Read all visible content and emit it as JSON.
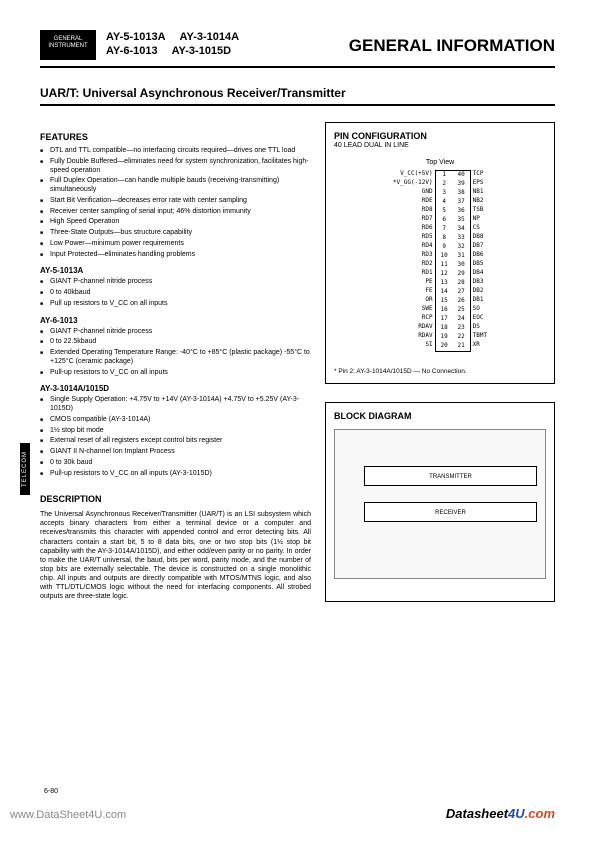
{
  "header": {
    "logo": "GENERAL INSTRUMENT",
    "parts": [
      [
        "AY-5-1013A",
        "AY-3-1014A"
      ],
      [
        "AY-6-1013",
        "AY-3-1015D"
      ]
    ],
    "title": "GENERAL INFORMATION"
  },
  "subtitle": "UAR/T: Universal Asynchronous Receiver/Transmitter",
  "features_title": "FEATURES",
  "features_main": [
    "DTL and TTL compatible—no interfacing circuits required—drives one TTL load",
    "Fully Double Buffered—eliminates need for system synchronization, facilitates high-speed operation",
    "Full Duplex Operation—can handle multiple bauds (receiving-transmitting) simultaneously",
    "Start Bit Verification—decreases error rate with center sampling",
    "Receiver center sampling of serial input; 46% distortion immunity",
    "High Speed Operation",
    "Three-State Outputs—bus structure capability",
    "Low Power—minimum power requirements",
    "Input Protected—eliminates handling problems"
  ],
  "sub_parts": {
    "AY-5-1013A": [
      "GIANT P-channel nitride process",
      "0 to 40kbaud",
      "Pull up resistors to V_CC on all inputs"
    ],
    "AY-6-1013": [
      "GIANT P-channel nitride process",
      "0 to 22.5kbaud",
      "Extended Operating Temperature Range: -40°C to +85°C (plastic package) -55°C to +125°C (ceramic package)",
      "Pull-up resistors to V_CC on all inputs"
    ],
    "AY-3-1014A/1015D": [
      "Single Supply Operation: +4.75V to +14V (AY-3-1014A) +4.75V to +5.25V (AY-3-1015D)",
      "CMOS compatible (AY-3-1014A)",
      "1½ stop bit mode",
      "External reset of all registers except control bits register",
      "GIANT II N-channel Ion Implant Process",
      "0 to 30k baud",
      "Pull-up resistors to V_CC on all inputs (AY-3-1015D)"
    ]
  },
  "description_title": "DESCRIPTION",
  "description": "The Universal Asynchronous Receiver/Transmitter (UAR/T) is an LSI subsystem which accepts binary characters from either a terminal device or a computer and receives/transmits this character with appended control and error detecting bits. All characters contain a start bit, 5 to 8 data bits, one or two stop bits (1½ stop bit capability with the AY-3-1014A/1015D), and either odd/even parity or no parity. In order to make the UAR/T universal, the baud, bits per word, parity mode, and the number of stop bits are externally selectable. The device is constructed on a single monolithic chip. All inputs and outputs are directly compatible with MTOS/MTNS logic, and also with TTL/DTL/CMOS logic without the need for interfacing components. All strobed outputs are three-state logic.",
  "pin_config": {
    "title": "PIN CONFIGURATION",
    "subtitle": "40 LEAD DUAL IN LINE",
    "top_view": "Top View",
    "left_pins": [
      "V_CC(+5V)",
      "*V_GG(-12V)",
      "GND",
      "RDE",
      "RD8",
      "RD7",
      "RD6",
      "RD5",
      "RD4",
      "RD3",
      "RD2",
      "RD1",
      "PE",
      "FE",
      "OR",
      "SWE",
      "RCP",
      "RDAV",
      "RDAV",
      "SI"
    ],
    "left_nums": [
      "1",
      "2",
      "3",
      "4",
      "5",
      "6",
      "7",
      "8",
      "9",
      "10",
      "11",
      "12",
      "13",
      "14",
      "15",
      "16",
      "17",
      "18",
      "19",
      "20"
    ],
    "right_nums": [
      "40",
      "39",
      "38",
      "37",
      "36",
      "35",
      "34",
      "33",
      "32",
      "31",
      "30",
      "29",
      "28",
      "27",
      "26",
      "25",
      "24",
      "23",
      "22",
      "21"
    ],
    "right_pins": [
      "TCP",
      "EPS",
      "NB1",
      "NB2",
      "TSB",
      "NP",
      "CS",
      "DB8",
      "DB7",
      "DB6",
      "DB5",
      "DB4",
      "DB3",
      "DB2",
      "DB1",
      "SO",
      "EOC",
      "DS",
      "TBMT",
      "XR"
    ],
    "note": "* Pin 2: AY-3-1014A/1015D — No Connection."
  },
  "block_diagram": {
    "title": "BLOCK DIAGRAM",
    "transmitter": "TRANSMITTER",
    "receiver": "RECEIVER"
  },
  "telecom_tab": "TELECOM",
  "page_num": "6-80",
  "watermark": "www.DataSheet4U.com",
  "footer": {
    "brand": "Datasheet",
    "suffix": "4U",
    "ext": ".com"
  }
}
